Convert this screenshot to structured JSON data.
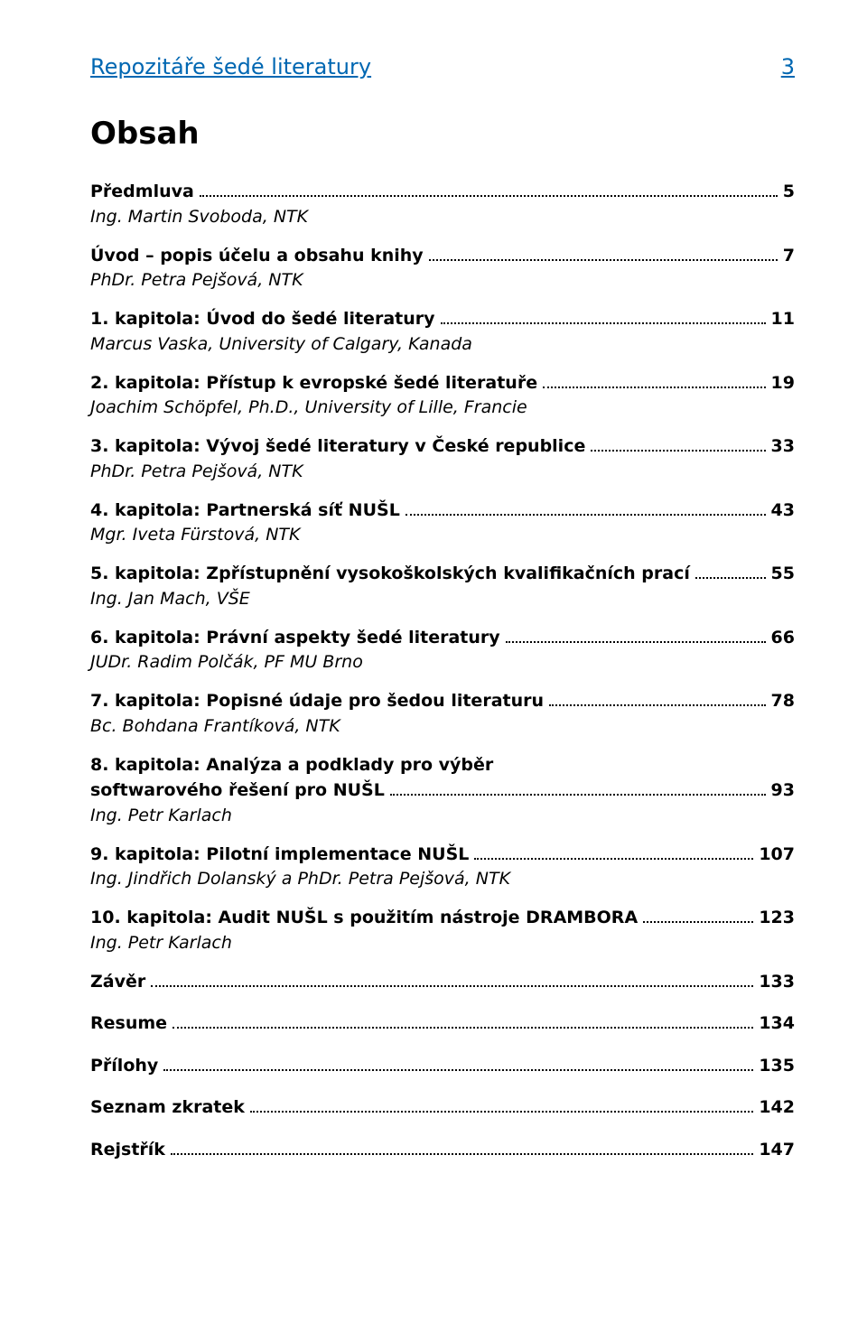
{
  "header": {
    "running_title": "Repozitáře šedé literatury",
    "page_number": "3"
  },
  "title": "Obsah",
  "entries": [
    {
      "label": "Předmluva",
      "page": "5",
      "author": "Ing. Martin Svoboda, NTK"
    },
    {
      "label": "Úvod – popis účelu a obsahu knihy",
      "page": "7",
      "author": "PhDr. Petra Pejšová, NTK"
    },
    {
      "label": "1. kapitola: Úvod do šedé literatury",
      "page": "11",
      "author": "Marcus Vaska, University of Calgary, Kanada"
    },
    {
      "label": "2. kapitola: Přístup k evropské šedé literatuře",
      "page": "19",
      "author": "Joachim Schöpfel, Ph.D., University of Lille, Francie"
    },
    {
      "label": "3. kapitola: Vývoj šedé literatury v České republice",
      "page": "33",
      "author": "PhDr. Petra Pejšová, NTK"
    },
    {
      "label": "4. kapitola: Partnerská síť NUŠL",
      "page": "43",
      "author": "Mgr. Iveta Fürstová, NTK"
    },
    {
      "label": "5. kapitola: Zpřístupnění vysokoškolských kvalifikačních prací",
      "page": "55",
      "author": "Ing. Jan Mach, VŠE"
    },
    {
      "label": "6. kapitola: Právní aspekty šedé literatury",
      "page": "66",
      "author": "JUDr. Radim Polčák, PF MU Brno"
    },
    {
      "label": "7. kapitola: Popisné údaje pro šedou literaturu",
      "page": "78",
      "author": "Bc. Bohdana Frantíková, NTK"
    },
    {
      "label_line1": "8. kapitola: Analýza a podklady pro výběr",
      "label_line2": "softwarového řešení pro NUŠL",
      "page": "93",
      "author": "Ing. Petr Karlach",
      "multiline": true
    },
    {
      "label": "9. kapitola: Pilotní implementace NUŠL",
      "page": "107",
      "author": "Ing. Jindřich Dolanský a PhDr. Petra Pejšová, NTK"
    },
    {
      "label": "10. kapitola: Audit NUŠL s použitím nástroje DRAMBORA",
      "page": "123",
      "author": "Ing. Petr Karlach"
    },
    {
      "label": "Závěr",
      "page": "133"
    },
    {
      "label": "Resume",
      "page": "134"
    },
    {
      "label": "Přílohy",
      "page": "135"
    },
    {
      "label": "Seznam zkratek",
      "page": "142"
    },
    {
      "label": "Rejstřík",
      "page": "147"
    }
  ],
  "colors": {
    "header_color": "#0067b2",
    "text_color": "#000000",
    "background": "#ffffff"
  },
  "typography": {
    "body_font": "Trebuchet MS",
    "title_size_pt": 26,
    "entry_size_pt": 14,
    "header_size_pt": 18
  }
}
